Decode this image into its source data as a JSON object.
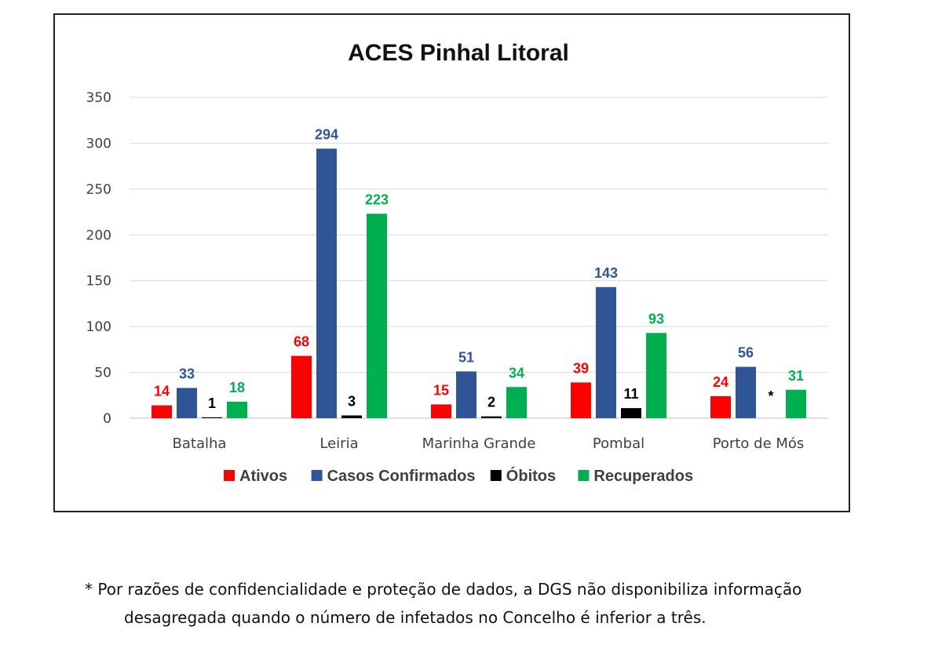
{
  "chart_data": {
    "type": "bar",
    "title": "ACES Pinhal Litoral",
    "categories": [
      "Batalha",
      "Leiria",
      "Marinha Grande",
      "Pombal",
      "Porto de Mós"
    ],
    "ylim": [
      0,
      350
    ],
    "yticks": [
      0,
      50,
      100,
      150,
      200,
      250,
      300,
      350
    ],
    "grid": true,
    "legend_position": "bottom",
    "series": [
      {
        "name": "Ativos",
        "color": "#ff0000",
        "values": [
          14,
          68,
          15,
          39,
          24
        ],
        "labels": [
          "14",
          "68",
          "15",
          "39",
          "24"
        ]
      },
      {
        "name": "Casos Confirmados",
        "color": "#2f5597",
        "values": [
          33,
          294,
          51,
          143,
          56
        ],
        "labels": [
          "33",
          "294",
          "51",
          "143",
          "56"
        ]
      },
      {
        "name": "Óbitos",
        "color": "#000000",
        "values": [
          1,
          3,
          2,
          11,
          null
        ],
        "labels": [
          "1",
          "3",
          "2",
          "11",
          "*"
        ]
      },
      {
        "name": "Recuperados",
        "color": "#00b050",
        "values": [
          18,
          223,
          34,
          93,
          31
        ],
        "labels": [
          "18",
          "223",
          "34",
          "93",
          "31"
        ]
      }
    ]
  },
  "footnote": {
    "line1": "* Por razões de confidencialidade e proteção de dados, a DGS não disponibiliza informação",
    "line2": "desagregada quando o número de infetados no Concelho é inferior a três."
  }
}
